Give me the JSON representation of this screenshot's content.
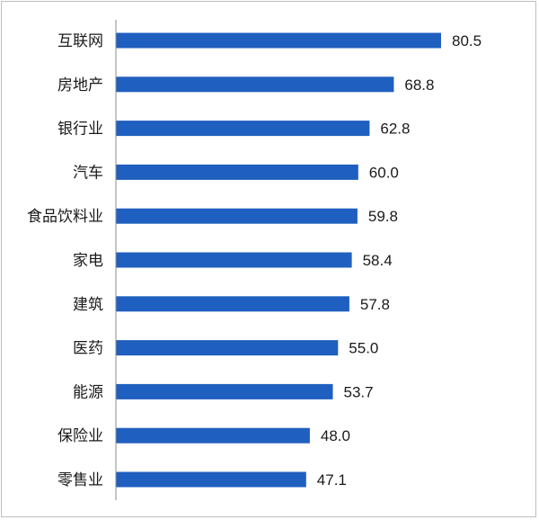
{
  "chart_data": {
    "type": "bar",
    "orientation": "horizontal",
    "categories": [
      "互联网",
      "房地产",
      "银行业",
      "汽车",
      "食品饮料业",
      "家电",
      "建筑",
      "医药",
      "能源",
      "保险业",
      "零售业"
    ],
    "values": [
      80.5,
      68.8,
      62.8,
      60.0,
      59.8,
      58.4,
      57.8,
      55.0,
      53.7,
      48.0,
      47.1
    ],
    "value_labels": [
      "80.5",
      "68.8",
      "62.8",
      "60.0",
      "59.8",
      "58.4",
      "57.8",
      "55.0",
      "53.7",
      "48.0",
      "47.1"
    ],
    "bar_color": "#1f5fbf",
    "title": "",
    "xlabel": "",
    "ylabel": "",
    "xlim": [
      0,
      80.5
    ],
    "grid": false,
    "legend": "none"
  }
}
